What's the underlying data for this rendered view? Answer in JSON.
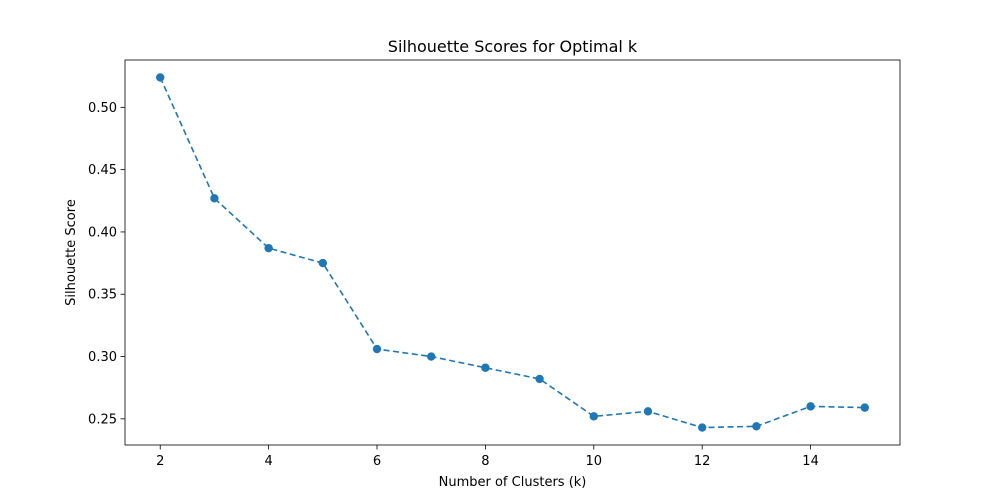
{
  "chart_data": {
    "type": "line",
    "title": "Silhouette Scores for Optimal k",
    "xlabel": "Number of Clusters (k)",
    "ylabel": "Silhouette Score",
    "x": [
      2,
      3,
      4,
      5,
      6,
      7,
      8,
      9,
      10,
      11,
      12,
      13,
      14,
      15
    ],
    "series": [
      {
        "values": [
          0.524,
          0.427,
          0.387,
          0.375,
          0.306,
          0.3,
          0.291,
          0.282,
          0.252,
          0.256,
          0.243,
          0.244,
          0.26,
          0.259
        ]
      }
    ],
    "xlim": [
      1.35,
      15.65
    ],
    "ylim": [
      0.229,
      0.538
    ],
    "xticks": [
      2,
      4,
      6,
      8,
      10,
      12,
      14
    ],
    "xtick_labels": [
      "2",
      "4",
      "6",
      "8",
      "10",
      "12",
      "14"
    ],
    "yticks": [
      0.25,
      0.3,
      0.35,
      0.4,
      0.45,
      0.5
    ],
    "ytick_labels": [
      "0.25",
      "0.30",
      "0.35",
      "0.40",
      "0.45",
      "0.50"
    ],
    "grid": false,
    "line_style": "dashed",
    "marker": "circle",
    "color": "#1f77b4"
  }
}
